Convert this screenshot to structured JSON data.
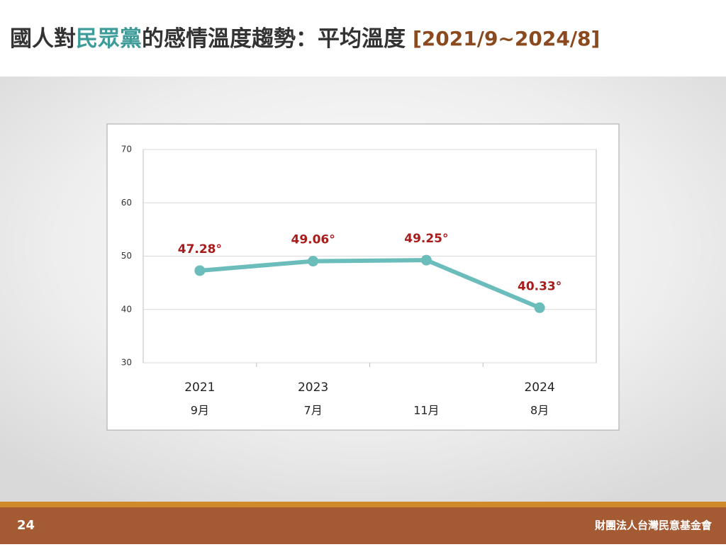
{
  "slide": {
    "title_parts": [
      "國人對",
      "民眾黨",
      "的感情溫度趨勢：平均溫度",
      "[2021/9~2024/8]"
    ],
    "page_number": "24",
    "organization": "財團法人台灣民意基金會"
  },
  "chart_data": {
    "type": "line",
    "category_years": [
      "2021",
      "2023",
      null,
      "2024"
    ],
    "categories": [
      "9月",
      "7月",
      "11月",
      "8月"
    ],
    "values": [
      47.28,
      49.06,
      49.25,
      40.33
    ],
    "value_labels": [
      "47.28°",
      "49.06°",
      "49.25°",
      "40.33°"
    ],
    "color": "#6bbdbb",
    "label_color": "#a81c1c",
    "ylim": [
      30,
      70
    ],
    "yticks": [
      30,
      40,
      50,
      60,
      70
    ],
    "grid": true
  }
}
